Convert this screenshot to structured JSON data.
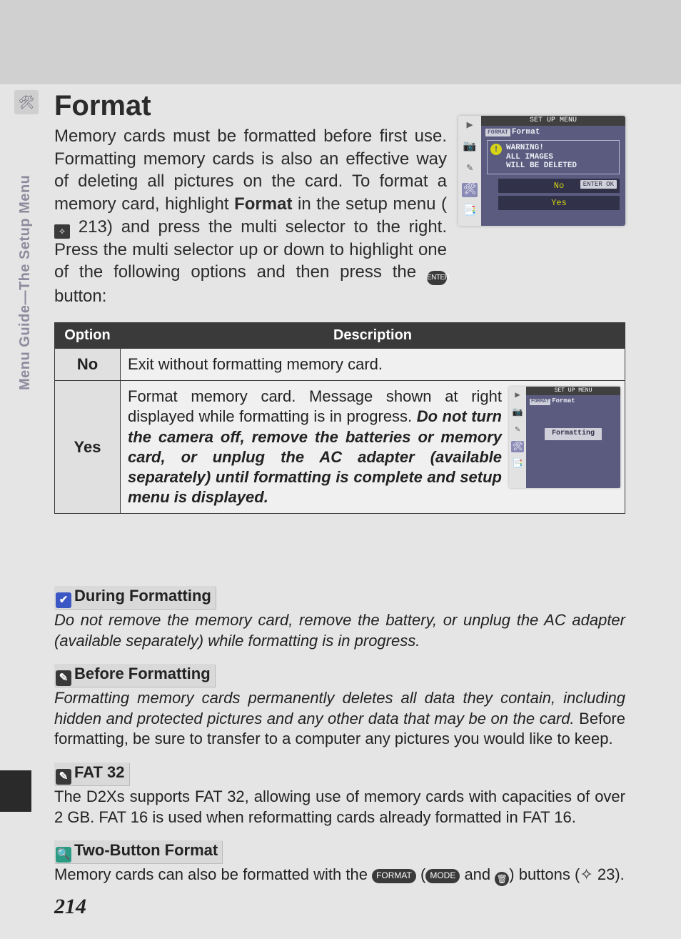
{
  "colors": {
    "page_bg": "#e5e5e5",
    "header_band": "#d0d0d0",
    "text": "#2b2b2b",
    "table_border": "#3a3a3a",
    "table_header_bg": "#3a3a3a",
    "table_header_fg": "#ffffff",
    "lcd_body_bg": "#5a5b7f",
    "lcd_accent": "#d4d414",
    "note_hd_bg": "#d9d9d9",
    "badge_blue": "#3a57c4",
    "badge_dark": "#393939",
    "badge_teal": "#2c9b86"
  },
  "typography": {
    "title_size_pt": 30,
    "body_size_pt": 18,
    "note_size_pt": 16,
    "pagenum_size_pt": 22
  },
  "side_tab": {
    "icon": "🛠",
    "label": "Menu Guide—The Setup Menu"
  },
  "title": "Format",
  "intro": {
    "line1": "Memory cards must be formatted before first use. Formatting memory cards is also an effective way of deleting all pictures on the card.  To format a memory card, highlight ",
    "format_word": "Format",
    "line2": " in the setup menu (",
    "ref_page": " 213",
    "line3": ") and press the multi selector to the right.  Press the multi selector up or down to highlight one of the following options and then press the ",
    "enter_label": "ENTER",
    "line4": " button:"
  },
  "lcd_main": {
    "title": "SET UP MENU",
    "crumb_tag": "FORMAT",
    "crumb": "Format",
    "warning": {
      "l1": "WARNING!",
      "l2": "ALL IMAGES",
      "l3": "WILL BE DELETED"
    },
    "opt_no": "No",
    "opt_yes": "Yes",
    "ok_label": "ENTER OK",
    "sidebar_icons": [
      "▶",
      "📷",
      "✎",
      "🛠",
      "📑"
    ]
  },
  "table": {
    "headers": {
      "option": "Option",
      "description": "Description"
    },
    "rows": [
      {
        "option": "No",
        "description": "Exit without formatting memory card."
      },
      {
        "option": "Yes",
        "desc_plain": "Format memory card.  Message shown at right displayed while formatting is in progress.  ",
        "desc_italic": "Do not turn the camera off, remove the batteries or memory card, or unplug the AC adapter (available separately) until formatting is complete and setup menu is displayed."
      }
    ]
  },
  "lcd_formatting": {
    "title": "SET UP MENU",
    "crumb_tag": "FORMAT",
    "crumb": "Format",
    "status": "Formatting",
    "sidebar_icons": [
      "▶",
      "📷",
      "✎",
      "🛠",
      "📑"
    ]
  },
  "notes": [
    {
      "badge_class": "blue",
      "badge_glyph": "✔",
      "heading": "During Formatting",
      "body_italic": "Do not remove the memory card, remove the battery, or unplug the AC adapter (available separately) while formatting is in progress."
    },
    {
      "badge_class": "dark",
      "badge_glyph": "✎",
      "heading": "Before Formatting",
      "body_italic": "Formatting memory cards permanently deletes all data they contain, including hidden and protected pictures and any other data that may be on the card.",
      "body_roman": " Before formatting, be sure to transfer to a computer any pictures you would like to keep."
    },
    {
      "badge_class": "dark",
      "badge_glyph": "✎",
      "heading": "FAT 32",
      "body": "The D2Xs supports FAT 32, allowing use of memory cards with capacities of over 2 GB. FAT 16 is used when reformatting cards already formatted in FAT 16."
    },
    {
      "badge_class": "teal",
      "badge_glyph": "🔍",
      "heading": "Two-Button Format",
      "body_pre": "Memory cards can also be formatted with the ",
      "format_btn": "FORMAT",
      "body_mid": " (",
      "mode_btn": "MODE",
      "body_and": " and ",
      "trash_icon": "🗑",
      "body_post": ") buttons (",
      "ref_page": " 23",
      "body_end": ")."
    }
  ],
  "page_number": "214"
}
